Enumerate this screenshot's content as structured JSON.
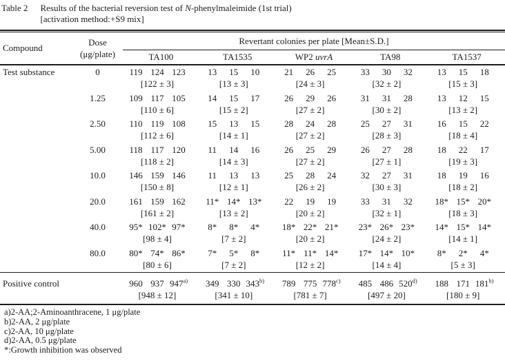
{
  "title": {
    "label": "Table 2",
    "line1_pre": "Results of the bacterial reversion test of ",
    "line1_italic": "N",
    "line1_post": "-phenylmaleimide (1st trial)",
    "line2": "[activation method:+S9 mix]"
  },
  "header": {
    "compound": "Compound",
    "dose_line1": "Dose",
    "dose_line2": "(μg/plate)",
    "span_label": "Revertant colonies per plate [Mean±S.D.]",
    "strains": [
      {
        "name": "TA100"
      },
      {
        "name": "TA1535"
      },
      {
        "name_pre": "WP2 ",
        "name_italic": "uvrA"
      },
      {
        "name": "TA98"
      },
      {
        "name": "TA1537"
      }
    ]
  },
  "body": {
    "compound_label": "Test substance",
    "rows": [
      {
        "dose": "0",
        "cells": [
          {
            "values": [
              "119",
              "124",
              "123"
            ],
            "mean": "[122 ± 3]"
          },
          {
            "values": [
              "13",
              "15",
              "10"
            ],
            "mean": "[13 ± 3]"
          },
          {
            "values": [
              "21",
              "26",
              "25"
            ],
            "mean": "[24 ± 3]"
          },
          {
            "values": [
              "33",
              "30",
              "32"
            ],
            "mean": "[32 ± 2]"
          },
          {
            "values": [
              "13",
              "15",
              "18"
            ],
            "mean": "[15 ± 3]"
          }
        ]
      },
      {
        "dose": "1.25",
        "cells": [
          {
            "values": [
              "109",
              "117",
              "105"
            ],
            "mean": "[110 ± 6]"
          },
          {
            "values": [
              "14",
              "15",
              "17"
            ],
            "mean": "[15 ± 2]"
          },
          {
            "values": [
              "26",
              "29",
              "26"
            ],
            "mean": "[27 ± 2]"
          },
          {
            "values": [
              "31",
              "31",
              "28"
            ],
            "mean": "[30 ± 2]"
          },
          {
            "values": [
              "13",
              "12",
              "15"
            ],
            "mean": "[13 ± 2]"
          }
        ]
      },
      {
        "dose": "2.50",
        "cells": [
          {
            "values": [
              "110",
              "119",
              "108"
            ],
            "mean": "[112 ± 6]"
          },
          {
            "values": [
              "15",
              "13",
              "15"
            ],
            "mean": "[14 ± 1]"
          },
          {
            "values": [
              "28",
              "24",
              "28"
            ],
            "mean": "[27 ± 2]"
          },
          {
            "values": [
              "25",
              "27",
              "31"
            ],
            "mean": "[28 ± 3]"
          },
          {
            "values": [
              "16",
              "15",
              "22"
            ],
            "mean": "[18 ± 4]"
          }
        ]
      },
      {
        "dose": "5.00",
        "cells": [
          {
            "values": [
              "118",
              "117",
              "120"
            ],
            "mean": "[118 ± 2]"
          },
          {
            "values": [
              "11",
              "14",
              "16"
            ],
            "mean": "[14 ± 3]"
          },
          {
            "values": [
              "26",
              "25",
              "29"
            ],
            "mean": "[27 ± 2]"
          },
          {
            "values": [
              "26",
              "27",
              "28"
            ],
            "mean": "[27 ± 1]"
          },
          {
            "values": [
              "18",
              "22",
              "17"
            ],
            "mean": "[19 ± 3]"
          }
        ]
      },
      {
        "dose": "10.0",
        "cells": [
          {
            "values": [
              "146",
              "159",
              "146"
            ],
            "mean": "[150 ± 8]"
          },
          {
            "values": [
              "11",
              "13",
              "13"
            ],
            "mean": "[12 ± 1]"
          },
          {
            "values": [
              "25",
              "28",
              "24"
            ],
            "mean": "[26 ± 2]"
          },
          {
            "values": [
              "32",
              "27",
              "31"
            ],
            "mean": "[30 ± 3]"
          },
          {
            "values": [
              "18",
              "19",
              "16"
            ],
            "mean": "[18 ± 2]"
          }
        ]
      },
      {
        "dose": "20.0",
        "cells": [
          {
            "values": [
              "161",
              "159",
              "162"
            ],
            "mean": "[161 ± 2]"
          },
          {
            "values": [
              "11*",
              "14*",
              "13*"
            ],
            "mean": "[13 ± 2]"
          },
          {
            "values": [
              "22",
              "19",
              "19"
            ],
            "mean": "[20 ± 2]"
          },
          {
            "values": [
              "33",
              "31",
              "32"
            ],
            "mean": "[32 ± 1]"
          },
          {
            "values": [
              "18*",
              "15*",
              "20*"
            ],
            "mean": "[18 ± 3]"
          }
        ]
      },
      {
        "dose": "40.0",
        "cells": [
          {
            "values": [
              "95*",
              "102*",
              "97*"
            ],
            "mean": "[98 ± 4]"
          },
          {
            "values": [
              "8*",
              "8*",
              "4*"
            ],
            "mean": "[7 ± 2]"
          },
          {
            "values": [
              "18*",
              "22*",
              "21*"
            ],
            "mean": "[20 ± 2]"
          },
          {
            "values": [
              "23*",
              "26*",
              "23*"
            ],
            "mean": "[24 ± 2]"
          },
          {
            "values": [
              "14*",
              "15*",
              "14*"
            ],
            "mean": "[14 ± 1]"
          }
        ]
      },
      {
        "dose": "80.0",
        "cells": [
          {
            "values": [
              "80*",
              "74*",
              "86*"
            ],
            "mean": "[80 ± 6]"
          },
          {
            "values": [
              "7*",
              "5*",
              "8*"
            ],
            "mean": "[7 ± 2]"
          },
          {
            "values": [
              "11*",
              "11*",
              "14*"
            ],
            "mean": "[12 ± 2]"
          },
          {
            "values": [
              "17*",
              "14*",
              "10*"
            ],
            "mean": "[14 ± 4]"
          },
          {
            "values": [
              "8*",
              "2*",
              "4*"
            ],
            "mean": "[5 ± 3]"
          }
        ]
      }
    ],
    "positive_control": {
      "label": "Positive control",
      "cells": [
        {
          "values": [
            "960",
            "937",
            "947"
          ],
          "sup": "a)",
          "mean": "[948 ± 12]"
        },
        {
          "values": [
            "349",
            "330",
            "343"
          ],
          "sup": "b)",
          "mean": "[341 ± 10]"
        },
        {
          "values": [
            "789",
            "775",
            "778"
          ],
          "sup": "c)",
          "mean": "[781 ± 7]"
        },
        {
          "values": [
            "485",
            "486",
            "520"
          ],
          "sup": "d)",
          "mean": "[497 ± 20]"
        },
        {
          "values": [
            "188",
            "171",
            "181"
          ],
          "sup": "b)",
          "mean": "[180 ± 9]"
        }
      ]
    }
  },
  "footnotes": [
    "a)2-AA;2-Aminoanthracene, 1 μg/plate",
    "b)2-AA, 2 μg/plate",
    "c)2-AA, 10 μg/plate",
    "d)2-AA, 0.5 μg/plate",
    "*:Growth inhibition was observed"
  ],
  "colors": {
    "ink": "#1b1b1b",
    "background": "#ffffff"
  }
}
